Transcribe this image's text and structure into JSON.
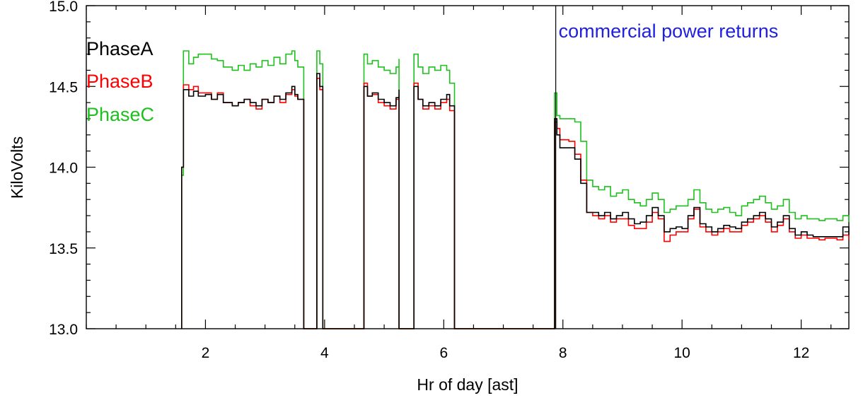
{
  "chart_data": {
    "type": "line",
    "title": "",
    "xlabel": "Hr of day [ast]",
    "ylabel": "KiloVolts",
    "xlim": [
      0,
      12.8
    ],
    "ylim": [
      13.0,
      15.0
    ],
    "grid": false,
    "legend_position": "top-left",
    "x_ticks": [
      2,
      4,
      6,
      8,
      10,
      12
    ],
    "x_tick_labels": [
      "2",
      "4",
      "6",
      "8",
      "10",
      "12"
    ],
    "y_ticks": [
      13.0,
      13.5,
      14.0,
      14.5,
      15.0
    ],
    "y_tick_labels": [
      "13.0",
      "13.5",
      "14.0",
      "14.5",
      "15.0"
    ],
    "annotations": [
      {
        "text": "commercial power returns",
        "x": 7.88,
        "color": "#2020e0"
      }
    ],
    "series": [
      {
        "name": "PhaseA",
        "color": "#000000",
        "x": [
          1.6,
          1.6,
          1.63,
          1.72,
          1.8,
          1.88,
          2.0,
          2.1,
          2.2,
          2.3,
          2.45,
          2.55,
          2.65,
          2.75,
          2.85,
          2.95,
          3.05,
          3.15,
          3.25,
          3.35,
          3.45,
          3.5,
          3.55,
          3.65,
          3.65,
          3.87,
          3.87,
          3.92,
          3.97,
          3.97,
          4.66,
          4.66,
          4.72,
          4.8,
          4.9,
          5.0,
          5.1,
          5.2,
          5.25,
          5.25,
          5.5,
          5.5,
          5.57,
          5.65,
          5.75,
          5.85,
          5.95,
          6.05,
          6.1,
          6.18,
          6.18,
          7.86,
          7.86,
          7.9,
          7.95,
          8.0,
          8.1,
          8.2,
          8.3,
          8.4,
          8.5,
          8.6,
          8.7,
          8.8,
          8.9,
          9.0,
          9.1,
          9.2,
          9.3,
          9.4,
          9.5,
          9.6,
          9.7,
          9.8,
          9.9,
          10.0,
          10.1,
          10.2,
          10.3,
          10.4,
          10.5,
          10.6,
          10.7,
          10.8,
          10.9,
          11.0,
          11.1,
          11.2,
          11.3,
          11.4,
          11.5,
          11.6,
          11.7,
          11.8,
          11.9,
          12.0,
          12.1,
          12.2,
          12.3,
          12.4,
          12.5,
          12.6,
          12.7,
          12.8
        ],
        "y": [
          13.0,
          14.0,
          14.48,
          14.44,
          14.47,
          14.44,
          14.45,
          14.42,
          14.45,
          14.4,
          14.38,
          14.4,
          14.42,
          14.4,
          14.38,
          14.42,
          14.4,
          14.44,
          14.42,
          14.46,
          14.5,
          14.45,
          14.42,
          14.42,
          13.0,
          13.0,
          14.58,
          14.5,
          14.42,
          13.0,
          13.0,
          14.5,
          14.44,
          14.46,
          14.42,
          14.4,
          14.38,
          14.43,
          14.48,
          13.0,
          13.0,
          14.5,
          14.42,
          14.38,
          14.4,
          14.38,
          14.42,
          14.45,
          14.38,
          14.3,
          13.0,
          13.0,
          14.3,
          14.2,
          14.12,
          14.12,
          14.12,
          14.05,
          13.9,
          13.72,
          13.72,
          13.7,
          13.72,
          13.68,
          13.7,
          13.72,
          13.68,
          13.65,
          13.66,
          13.7,
          13.75,
          13.7,
          13.6,
          13.62,
          13.63,
          13.62,
          13.7,
          13.75,
          13.65,
          13.63,
          13.6,
          13.62,
          13.64,
          13.63,
          13.62,
          13.66,
          13.68,
          13.7,
          13.72,
          13.68,
          13.63,
          13.66,
          13.7,
          13.62,
          13.58,
          13.6,
          13.58,
          13.57,
          13.57,
          13.57,
          13.57,
          13.57,
          13.63,
          13.58
        ]
      },
      {
        "name": "PhaseB",
        "color": "#ff0000",
        "x": [
          1.6,
          1.6,
          1.63,
          1.72,
          1.8,
          1.88,
          2.0,
          2.1,
          2.2,
          2.3,
          2.45,
          2.55,
          2.65,
          2.75,
          2.85,
          2.95,
          3.05,
          3.15,
          3.25,
          3.35,
          3.45,
          3.5,
          3.55,
          3.65,
          3.65,
          3.87,
          3.87,
          3.92,
          3.97,
          3.97,
          4.66,
          4.66,
          4.72,
          4.8,
          4.9,
          5.0,
          5.1,
          5.2,
          5.25,
          5.25,
          5.5,
          5.5,
          5.57,
          5.65,
          5.75,
          5.85,
          5.95,
          6.05,
          6.1,
          6.18,
          6.18,
          7.86,
          7.86,
          7.9,
          7.95,
          8.0,
          8.1,
          8.2,
          8.3,
          8.4,
          8.5,
          8.6,
          8.7,
          8.8,
          8.9,
          9.0,
          9.1,
          9.2,
          9.3,
          9.4,
          9.5,
          9.6,
          9.7,
          9.8,
          9.9,
          10.0,
          10.1,
          10.2,
          10.3,
          10.4,
          10.5,
          10.6,
          10.7,
          10.8,
          10.9,
          11.0,
          11.1,
          11.2,
          11.3,
          11.4,
          11.5,
          11.6,
          11.7,
          11.8,
          11.9,
          12.0,
          12.1,
          12.2,
          12.3,
          12.4,
          12.5,
          12.6,
          12.7,
          12.8
        ],
        "y": [
          13.0,
          14.0,
          14.51,
          14.48,
          14.5,
          14.46,
          14.46,
          14.42,
          14.46,
          14.4,
          14.38,
          14.4,
          14.42,
          14.38,
          14.36,
          14.42,
          14.4,
          14.44,
          14.4,
          14.45,
          14.48,
          14.44,
          14.42,
          14.4,
          13.0,
          13.0,
          14.55,
          14.48,
          14.4,
          13.0,
          13.0,
          14.52,
          14.44,
          14.45,
          14.4,
          14.38,
          14.36,
          14.42,
          14.45,
          13.0,
          13.0,
          14.52,
          14.42,
          14.36,
          14.38,
          14.36,
          14.4,
          14.42,
          14.35,
          14.27,
          13.0,
          13.0,
          14.28,
          14.24,
          14.17,
          14.17,
          14.16,
          14.08,
          13.92,
          13.72,
          13.7,
          13.68,
          13.7,
          13.66,
          13.68,
          13.68,
          13.64,
          13.62,
          13.62,
          13.66,
          13.72,
          13.68,
          13.54,
          13.58,
          13.6,
          13.6,
          13.68,
          13.74,
          13.63,
          13.6,
          13.58,
          13.6,
          13.62,
          13.6,
          13.6,
          13.64,
          13.66,
          13.68,
          13.7,
          13.66,
          13.6,
          13.64,
          13.68,
          13.6,
          13.56,
          13.58,
          13.56,
          13.56,
          13.55,
          13.56,
          13.56,
          13.55,
          13.58,
          13.55
        ]
      },
      {
        "name": "PhaseC",
        "color": "#1ec01e",
        "x": [
          1.6,
          1.6,
          1.63,
          1.72,
          1.8,
          1.88,
          2.0,
          2.1,
          2.2,
          2.3,
          2.45,
          2.55,
          2.65,
          2.75,
          2.85,
          2.95,
          3.05,
          3.15,
          3.25,
          3.35,
          3.45,
          3.5,
          3.55,
          3.65,
          3.65,
          3.87,
          3.87,
          3.92,
          3.97,
          3.97,
          4.66,
          4.66,
          4.72,
          4.8,
          4.9,
          5.0,
          5.1,
          5.2,
          5.25,
          5.25,
          5.5,
          5.5,
          5.57,
          5.65,
          5.75,
          5.85,
          5.95,
          6.05,
          6.1,
          6.18,
          6.18,
          7.86,
          7.86,
          7.9,
          7.95,
          8.0,
          8.1,
          8.2,
          8.3,
          8.4,
          8.5,
          8.6,
          8.7,
          8.8,
          8.9,
          9.0,
          9.1,
          9.2,
          9.3,
          9.4,
          9.5,
          9.6,
          9.7,
          9.8,
          9.9,
          10.0,
          10.1,
          10.2,
          10.3,
          10.4,
          10.5,
          10.6,
          10.7,
          10.8,
          10.9,
          11.0,
          11.1,
          11.2,
          11.3,
          11.4,
          11.5,
          11.6,
          11.7,
          11.8,
          11.9,
          12.0,
          12.1,
          12.2,
          12.3,
          12.4,
          12.5,
          12.6,
          12.7,
          12.8
        ],
        "y": [
          13.0,
          13.95,
          14.72,
          14.64,
          14.68,
          14.7,
          14.7,
          14.67,
          14.66,
          14.62,
          14.6,
          14.63,
          14.6,
          14.64,
          14.62,
          14.66,
          14.63,
          14.68,
          14.64,
          14.7,
          14.72,
          14.66,
          14.62,
          14.62,
          13.0,
          13.0,
          14.72,
          14.64,
          14.62,
          13.0,
          13.0,
          14.7,
          14.64,
          14.66,
          14.62,
          14.6,
          14.58,
          14.62,
          14.67,
          13.0,
          13.0,
          14.7,
          14.62,
          14.58,
          14.62,
          14.6,
          14.63,
          14.6,
          14.52,
          14.45,
          13.0,
          13.0,
          14.46,
          14.32,
          14.3,
          14.3,
          14.3,
          14.28,
          14.16,
          13.92,
          13.88,
          13.86,
          13.88,
          13.82,
          13.84,
          13.86,
          13.8,
          13.78,
          13.76,
          13.8,
          13.84,
          13.8,
          13.72,
          13.74,
          13.76,
          13.76,
          13.8,
          13.86,
          13.78,
          13.74,
          13.72,
          13.74,
          13.75,
          13.72,
          13.7,
          13.76,
          13.78,
          13.8,
          13.82,
          13.78,
          13.74,
          13.76,
          13.8,
          13.72,
          13.68,
          13.7,
          13.68,
          13.68,
          13.67,
          13.68,
          13.68,
          13.67,
          13.7,
          13.66
        ]
      }
    ]
  }
}
